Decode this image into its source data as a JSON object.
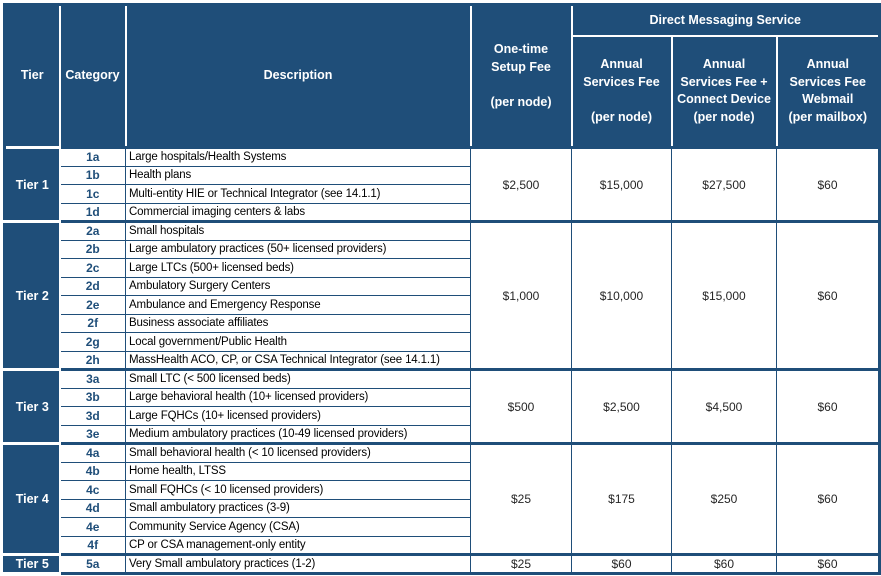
{
  "colors": {
    "header_bg": "#1F4E79",
    "border_blue": "#1F4E79",
    "header_text": "#FFFFFF",
    "category_text": "#1F4E79",
    "body_text": "#262626"
  },
  "table": {
    "header": {
      "tier": "Tier",
      "category": "Category",
      "description": "Description",
      "setup_fee": "One-time\nSetup Fee\n\n(per node)",
      "dms_group": "Direct Messaging Service",
      "annual_fee": "Annual\nServices Fee\n\n(per node)",
      "annual_connect_fee": "Annual\nServices Fee +\nConnect Device\n(per node)",
      "annual_webmail_fee": "Annual\nServices Fee\nWebmail\n(per mailbox)"
    },
    "tiers": [
      {
        "label": "Tier 1",
        "rows": [
          {
            "category": "1a",
            "description": "Large hospitals/Health Systems"
          },
          {
            "category": "1b",
            "description": "Health plans"
          },
          {
            "category": "1c",
            "description": "Multi-entity HIE or Technical Integrator (see 14.1.1)"
          },
          {
            "category": "1d",
            "description": "Commercial imaging centers & labs"
          }
        ],
        "fees": {
          "setup": "$2,500",
          "annual": "$15,000",
          "annual_connect": "$27,500",
          "webmail": "$60"
        }
      },
      {
        "label": "Tier 2",
        "rows": [
          {
            "category": "2a",
            "description": "Small hospitals"
          },
          {
            "category": "2b",
            "description": "Large ambulatory practices (50+ licensed providers)"
          },
          {
            "category": "2c",
            "description": "Large LTCs (500+ licensed beds)"
          },
          {
            "category": "2d",
            "description": "Ambulatory Surgery Centers"
          },
          {
            "category": "2e",
            "description": "Ambulance and Emergency Response"
          },
          {
            "category": "2f",
            "description": "Business associate affiliates"
          },
          {
            "category": "2g",
            "description": "Local government/Public Health"
          },
          {
            "category": "2h",
            "description": "MassHealth ACO, CP, or CSA Technical Integrator (see 14.1.1)"
          }
        ],
        "fees": {
          "setup": "$1,000",
          "annual": "$10,000",
          "annual_connect": "$15,000",
          "webmail": "$60"
        }
      },
      {
        "label": "Tier 3",
        "rows": [
          {
            "category": "3a",
            "description": "Small LTC  (< 500 licensed beds)"
          },
          {
            "category": "3b",
            "description": "Large behavioral health (10+ licensed providers)"
          },
          {
            "category": "3d",
            "description": "Large FQHCs (10+ licensed providers)"
          },
          {
            "category": "3e",
            "description": "Medium ambulatory practices (10-49 licensed providers)"
          }
        ],
        "fees": {
          "setup": "$500",
          "annual": "$2,500",
          "annual_connect": "$4,500",
          "webmail": "$60"
        }
      },
      {
        "label": "Tier 4",
        "rows": [
          {
            "category": "4a",
            "description": "Small behavioral health (< 10 licensed providers)"
          },
          {
            "category": "4b",
            "description": "Home health, LTSS"
          },
          {
            "category": "4c",
            "description": "Small FQHCs (< 10 licensed providers)"
          },
          {
            "category": "4d",
            "description": "Small ambulatory practices (3-9)"
          },
          {
            "category": "4e",
            "description": "Community Service Agency (CSA)"
          },
          {
            "category": "4f",
            "description": "CP or CSA management-only entity"
          }
        ],
        "fees": {
          "setup": "$25",
          "annual": "$175",
          "annual_connect": "$250",
          "webmail": "$60"
        }
      },
      {
        "label": "Tier 5",
        "rows": [
          {
            "category": "5a",
            "description": "Very Small ambulatory practices (1-2)"
          }
        ],
        "fees": {
          "setup": "$25",
          "annual": "$60",
          "annual_connect": "$60",
          "webmail": "$60"
        }
      }
    ]
  }
}
